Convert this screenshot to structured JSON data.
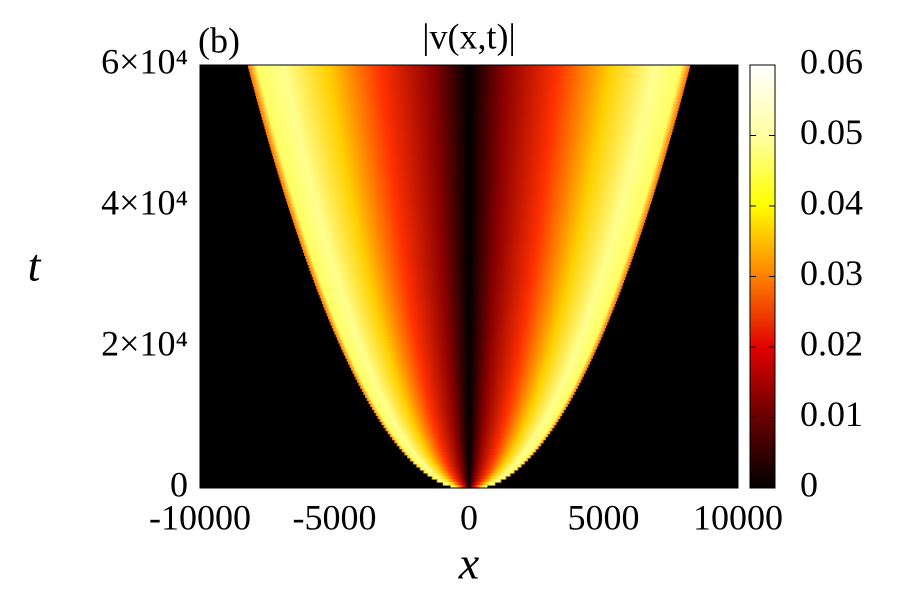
{
  "chart_data": {
    "type": "heatmap",
    "title": "|v(x,t)|",
    "panel_label": "(b)",
    "x_label": "x",
    "y_label": "t",
    "xlim": [
      -10000,
      10000
    ],
    "xticks": [
      -10000,
      -5000,
      0,
      5000,
      10000
    ],
    "ylim": [
      0,
      60000
    ],
    "yticks": [
      0,
      {
        "value": 20000,
        "label": "2×10⁴"
      },
      {
        "value": 40000,
        "label": "4×10⁴"
      },
      {
        "value": 60000,
        "label": "6×10⁴"
      }
    ],
    "clim": [
      0,
      0.06
    ],
    "cticks": [
      0,
      0.01,
      0.02,
      0.03,
      0.04,
      0.05,
      0.06
    ]
  }
}
